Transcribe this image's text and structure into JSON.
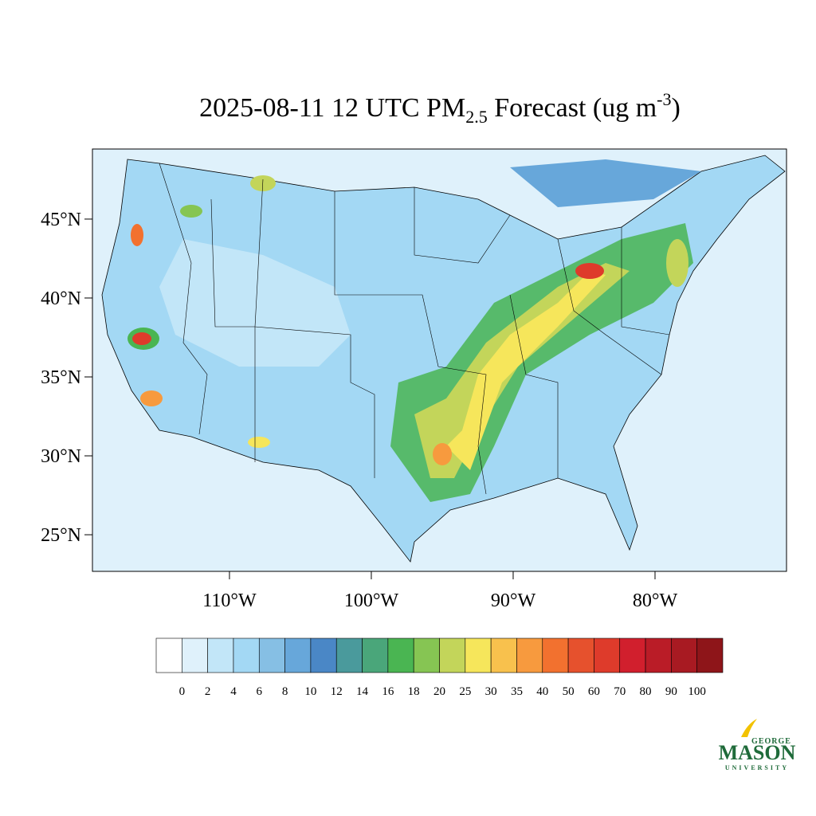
{
  "title": {
    "main": "2025-08-11 12 UTC PM",
    "sub": "2.5",
    "middle": " Forecast (ug m",
    "sup": "-3",
    "end": ")"
  },
  "map": {
    "latlim": [
      22.68,
      49.44
    ],
    "lonlim": [
      -119.66,
      -70.73
    ],
    "lat_ticks": [
      {
        "value": 25,
        "label": "25°N"
      },
      {
        "value": 30,
        "label": "30°N"
      },
      {
        "value": 35,
        "label": "35°N"
      },
      {
        "value": 40,
        "label": "40°N"
      },
      {
        "value": 45,
        "label": "45°N"
      }
    ],
    "lon_ticks": [
      {
        "value": -110,
        "label": "110°W"
      },
      {
        "value": -100,
        "label": "100°W"
      },
      {
        "value": -90,
        "label": "90°W"
      },
      {
        "value": -80,
        "label": "80°W"
      }
    ]
  },
  "colorbar": {
    "levels": [
      0,
      2,
      4,
      6,
      8,
      10,
      12,
      14,
      16,
      18,
      20,
      25,
      30,
      35,
      40,
      50,
      60,
      70,
      80,
      90,
      100
    ],
    "colors": [
      "#ffffff",
      "#dff1fb",
      "#c2e6f8",
      "#a3d8f4",
      "#86bfe4",
      "#67a7da",
      "#4a87c6",
      "#4a9a9c",
      "#4aa67a",
      "#4ab552",
      "#86c553",
      "#c3d55a",
      "#f6e65b",
      "#f8c14d",
      "#f79a3e",
      "#f2712f",
      "#e6512d",
      "#de3b2b",
      "#d11f2d",
      "#ba1c27",
      "#a81a22",
      "#8e1519"
    ]
  },
  "logo": {
    "top": "GEORGE",
    "name": "MASON",
    "bottom": "UNIVERSITY"
  }
}
